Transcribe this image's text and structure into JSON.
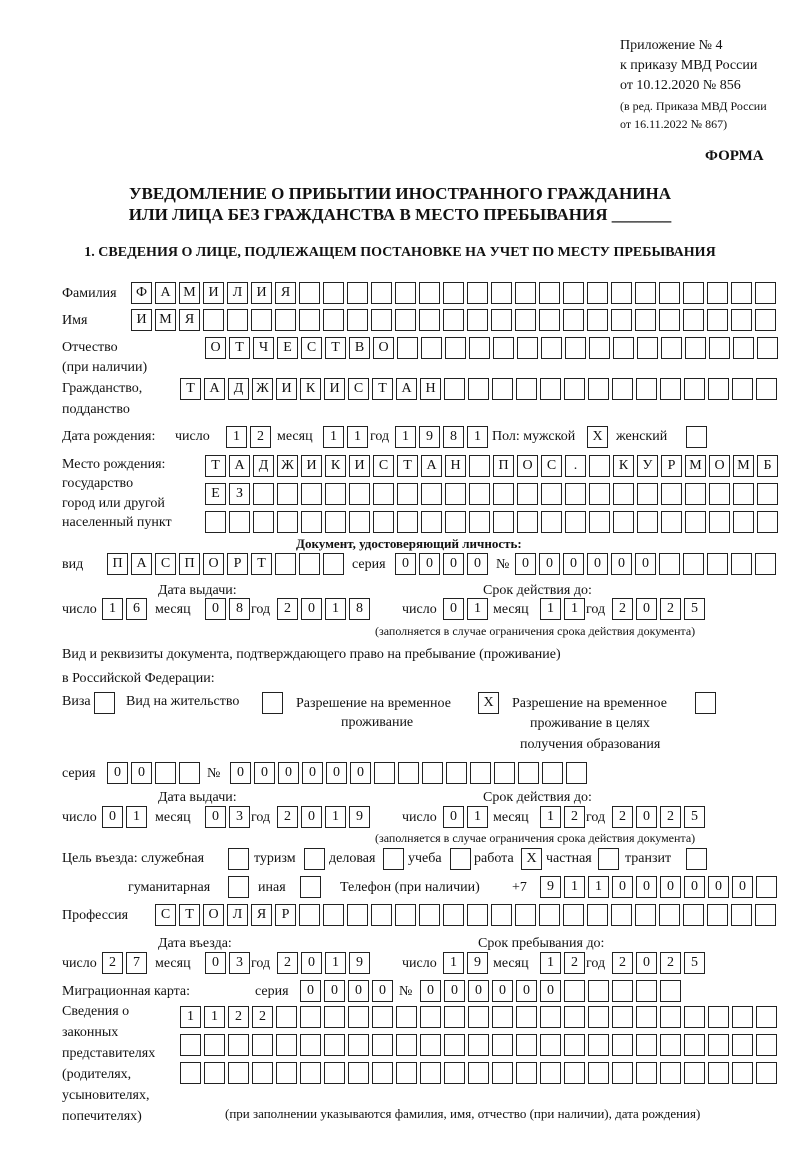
{
  "header": {
    "appendix": "Приложение № 4",
    "order": "к приказу МВД России",
    "order_date": "от 10.12.2020 № 856",
    "edition1": "(в ред. Приказа МВД России",
    "edition2": "от 16.11.2022 № 867)",
    "form_label": "ФОРМА",
    "title1": "УВЕДОМЛЕНИЕ О ПРИБЫТИИ ИНОСТРАННОГО ГРАЖДАНИНА",
    "title2": "ИЛИ ЛИЦА БЕЗ ГРАЖДАНСТВА В МЕСТО ПРЕБЫВАНИЯ _______",
    "section1": "1. СВЕДЕНИЯ О ЛИЦЕ, ПОДЛЕЖАЩЕМ ПОСТАНОВКЕ НА УЧЕТ ПО МЕСТУ ПРЕБЫВАНИЯ"
  },
  "labels": {
    "surname": "Фамилия",
    "name": "Имя",
    "patronymic": "Отчество",
    "patronymic2": "(при наличии)",
    "citizenship": "Гражданство,",
    "citizenship2": "подданство",
    "birth_date": "Дата рождения:",
    "day": "число",
    "month": "месяц",
    "year": "год",
    "sex": "Пол: мужской",
    "female": "женский",
    "birthplace1": "Место рождения:",
    "birthplace2": "государство",
    "birthplace3": "город или другой",
    "birthplace4": "населенный пункт",
    "id_doc": "Документ, удостоверяющий личность:",
    "kind": "вид",
    "series": "серия",
    "number": "№",
    "issue_date": "Дата выдачи:",
    "valid_until": "Срок действия до:",
    "valid_note": "(заполняется в случае ограничения срока действия документа)",
    "stay_doc1": "Вид и реквизиты документа, подтверждающего право на пребывание (проживание)",
    "stay_doc2": "в Российской Федерации:",
    "visa": "Виза",
    "residence": "Вид на жительство",
    "trp1": "Разрешение на временное",
    "trp2": "проживание",
    "trp_edu1": "Разрешение на временное",
    "trp_edu2": "проживание в целях",
    "trp_edu3": "получения образования",
    "purpose": "Цель въезда: служебная",
    "tourism": "туризм",
    "business": "деловая",
    "study": "учеба",
    "work": "работа",
    "private": "частная",
    "transit": "транзит",
    "humanitarian": "гуманитарная",
    "other": "иная",
    "phone": "Телефон (при наличии)",
    "phone_prefix": "+7",
    "profession": "Профессия",
    "entry_date": "Дата въезда:",
    "stay_until": "Срок пребывания до:",
    "migration_card": "Миграционная карта:",
    "reps1": "Сведения о",
    "reps2": "законных",
    "reps3": "представителях",
    "reps4": "(родителях,",
    "reps5": "усыновителях,",
    "reps6": "попечителях)",
    "reps_note": "(при заполнении указываются фамилия, имя, отчество (при наличии), дата рождения)"
  },
  "values": {
    "surname": "ФАМИЛИЯ",
    "name": "ИМЯ",
    "patronymic": "ОТЧЕСТВО",
    "citizenship": "ТАДЖИКИСТАН",
    "birth_day": "12",
    "birth_month": "11",
    "birth_year": "1981",
    "sex_male": "X",
    "sex_female": "",
    "birthplace_row1": "ТАДЖИКИСТАН ПОС. КУРМОМБ",
    "birthplace_row2": "ЕЗ",
    "birthplace_row3": "",
    "id_kind": "ПАСПОРТ",
    "id_series": "0000",
    "id_number": "000000",
    "id_issue_day": "16",
    "id_issue_month": "08",
    "id_issue_year": "2018",
    "id_valid_day": "01",
    "id_valid_month": "11",
    "id_valid_year": "2025",
    "visa": "",
    "residence": "",
    "trp": "X",
    "trp_edu": "",
    "stay_series": "00",
    "stay_number": "000000",
    "stay_issue_day": "01",
    "stay_issue_month": "03",
    "stay_issue_year": "2019",
    "stay_valid_day": "01",
    "stay_valid_month": "12",
    "stay_valid_year": "2025",
    "purpose_official": "",
    "purpose_tourism": "",
    "purpose_business": "",
    "purpose_study": "",
    "purpose_work": "X",
    "purpose_private": "",
    "purpose_transit": "",
    "purpose_humanitarian": "",
    "purpose_other": "",
    "phone": "911000000",
    "profession": "СТОЛЯР",
    "entry_day": "27",
    "entry_month": "03",
    "entry_year": "2019",
    "stay_until_day": "19",
    "stay_until_month": "12",
    "stay_until_year": "2025",
    "mc_series": "0000",
    "mc_number": "000000",
    "reps_row1": "1122",
    "reps_row2": "",
    "reps_row3": ""
  }
}
